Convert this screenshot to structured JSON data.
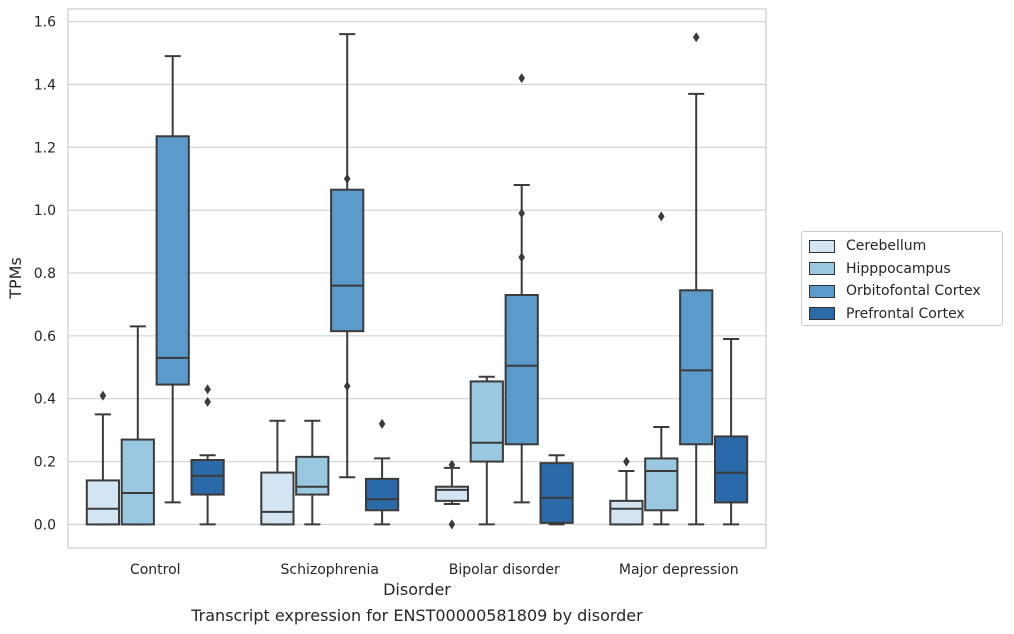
{
  "caption": "Transcript expression for ENST00000581809 by disorder",
  "chart_data": {
    "type": "boxplot",
    "xlabel": "Disorder",
    "ylabel": "TPMs",
    "ylim": [
      -0.075,
      1.64
    ],
    "yticks": [
      0.0,
      0.2,
      0.4,
      0.6,
      0.8,
      1.0,
      1.2,
      1.4,
      1.6
    ],
    "ytick_labels": [
      "0.0",
      "0.2",
      "0.4",
      "0.6",
      "0.8",
      "1.0",
      "1.2",
      "1.4",
      "1.6"
    ],
    "categories": [
      "Control",
      "Schizophrenia",
      "Bipolar disorder",
      "Major depression"
    ],
    "grid": true,
    "legend_position": "right",
    "series": [
      {
        "name": "Cerebellum",
        "color": "#d3e4f3",
        "boxes": [
          {
            "whislo": 0.0,
            "q1": 0.0,
            "med": 0.05,
            "q3": 0.14,
            "whishi": 0.35,
            "fliers": [
              0.41
            ]
          },
          {
            "whislo": 0.0,
            "q1": 0.0,
            "med": 0.04,
            "q3": 0.165,
            "whishi": 0.33,
            "fliers": []
          },
          {
            "whislo": 0.065,
            "q1": 0.075,
            "med": 0.11,
            "q3": 0.12,
            "whishi": 0.18,
            "fliers": [
              0.19,
              0.0
            ]
          },
          {
            "whislo": 0.0,
            "q1": 0.0,
            "med": 0.05,
            "q3": 0.075,
            "whishi": 0.17,
            "fliers": [
              0.2
            ]
          }
        ]
      },
      {
        "name": "Hipppocampus",
        "color": "#9ac8e0",
        "boxes": [
          {
            "whislo": 0.0,
            "q1": 0.0,
            "med": 0.1,
            "q3": 0.27,
            "whishi": 0.63,
            "fliers": []
          },
          {
            "whislo": 0.0,
            "q1": 0.095,
            "med": 0.12,
            "q3": 0.215,
            "whishi": 0.33,
            "fliers": []
          },
          {
            "whislo": 0.0,
            "q1": 0.2,
            "med": 0.26,
            "q3": 0.455,
            "whishi": 0.47,
            "fliers": []
          },
          {
            "whislo": 0.0,
            "q1": 0.045,
            "med": 0.17,
            "q3": 0.21,
            "whishi": 0.31,
            "fliers": [
              0.98
            ]
          }
        ]
      },
      {
        "name": "Orbitofontal Cortex",
        "color": "#5a9bcb",
        "boxes": [
          {
            "whislo": 0.07,
            "q1": 0.445,
            "med": 0.53,
            "q3": 1.235,
            "whishi": 1.49,
            "fliers": []
          },
          {
            "whislo": 0.15,
            "q1": 0.615,
            "med": 0.76,
            "q3": 1.065,
            "whishi": 1.56,
            "fliers": [
              1.1,
              0.44
            ]
          },
          {
            "whislo": 0.07,
            "q1": 0.255,
            "med": 0.505,
            "q3": 0.73,
            "whishi": 1.08,
            "fliers": [
              1.42,
              0.99,
              0.85
            ]
          },
          {
            "whislo": 0.0,
            "q1": 0.255,
            "med": 0.49,
            "q3": 0.745,
            "whishi": 1.37,
            "fliers": [
              1.55
            ]
          }
        ]
      },
      {
        "name": "Prefrontal Cortex",
        "color": "#2b6aa8",
        "boxes": [
          {
            "whislo": 0.0,
            "q1": 0.095,
            "med": 0.155,
            "q3": 0.205,
            "whishi": 0.22,
            "fliers": [
              0.43,
              0.39
            ]
          },
          {
            "whislo": 0.0,
            "q1": 0.045,
            "med": 0.08,
            "q3": 0.145,
            "whishi": 0.21,
            "fliers": [
              0.32
            ]
          },
          {
            "whislo": 0.0,
            "q1": 0.005,
            "med": 0.085,
            "q3": 0.195,
            "whishi": 0.22,
            "fliers": []
          },
          {
            "whislo": 0.0,
            "q1": 0.07,
            "med": 0.165,
            "q3": 0.28,
            "whishi": 0.59,
            "fliers": []
          }
        ]
      }
    ]
  }
}
